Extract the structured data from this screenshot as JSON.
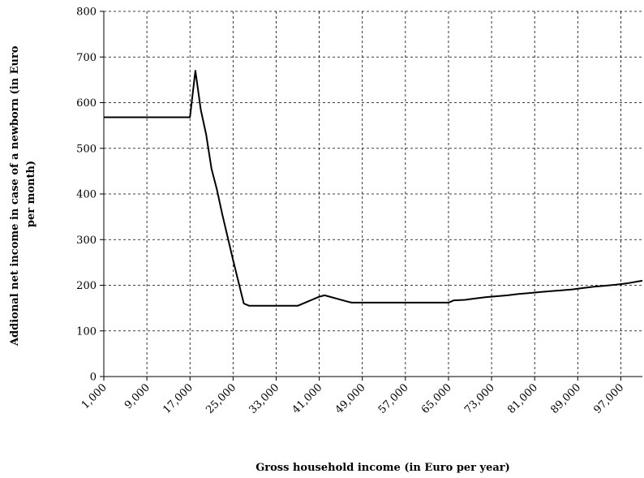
{
  "chart_data": {
    "type": "line",
    "title": "",
    "xlabel": "Gross household income (in Euro per year)",
    "ylabel_lines": [
      "Addional net income in case of a newborn (in Euro",
      "per month)"
    ],
    "xlim": [
      1000,
      101000
    ],
    "ylim": [
      0,
      800
    ],
    "grid": true,
    "legend": "none",
    "x_ticks": [
      1000,
      9000,
      17000,
      25000,
      33000,
      41000,
      49000,
      57000,
      65000,
      73000,
      81000,
      89000,
      97000
    ],
    "x_tick_labels": [
      "1,000",
      "9,000",
      "17,000",
      "25,000",
      "33,000",
      "41,000",
      "49,000",
      "57,000",
      "65,000",
      "73,000",
      "81,000",
      "89,000",
      "97,000"
    ],
    "y_ticks": [
      0,
      100,
      200,
      300,
      400,
      500,
      600,
      700,
      800
    ],
    "y_tick_labels": [
      "0",
      "100",
      "200",
      "300",
      "400",
      "500",
      "600",
      "700",
      "800"
    ],
    "series": [
      {
        "color": "#000000",
        "x": [
          1000,
          17000,
          18000,
          19000,
          20000,
          21000,
          22000,
          23000,
          25000,
          27000,
          28000,
          29000,
          30000,
          37000,
          41000,
          42000,
          46000,
          47000,
          64000,
          65000,
          66000,
          68000,
          70000,
          72000,
          74000,
          76000,
          78000,
          80000,
          82000,
          84000,
          86000,
          88000,
          90000,
          92000,
          94000,
          96000,
          98000,
          100000,
          101000
        ],
        "y": [
          568,
          568,
          670,
          585,
          530,
          455,
          410,
          355,
          255,
          160,
          155,
          155,
          155,
          155,
          175,
          178,
          165,
          162,
          162,
          162,
          167,
          168,
          171,
          174,
          176,
          178,
          181,
          183,
          185,
          187,
          189,
          191,
          194,
          197,
          199,
          201,
          204,
          208,
          210
        ]
      }
    ]
  }
}
